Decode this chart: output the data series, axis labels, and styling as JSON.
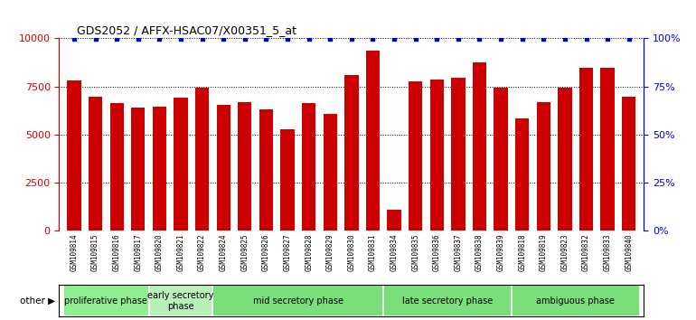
{
  "title": "GDS2052 / AFFX-HSAC07/X00351_5_at",
  "samples": [
    "GSM109814",
    "GSM109815",
    "GSM109816",
    "GSM109817",
    "GSM109820",
    "GSM109821",
    "GSM109822",
    "GSM109824",
    "GSM109825",
    "GSM109826",
    "GSM109827",
    "GSM109828",
    "GSM109829",
    "GSM109830",
    "GSM109831",
    "GSM109834",
    "GSM109835",
    "GSM109836",
    "GSM109837",
    "GSM109838",
    "GSM109839",
    "GSM109818",
    "GSM109819",
    "GSM109823",
    "GSM109832",
    "GSM109833",
    "GSM109840"
  ],
  "counts": [
    7800,
    6950,
    6650,
    6400,
    6450,
    6900,
    7450,
    6550,
    6700,
    6300,
    5250,
    6650,
    6050,
    8100,
    9350,
    1100,
    7750,
    7850,
    7950,
    8750,
    7450,
    5850,
    6700,
    7450,
    8450,
    8450,
    6950
  ],
  "phases": [
    {
      "name": "proliferative phase",
      "start": 0,
      "end": 4,
      "color": "#90EE90"
    },
    {
      "name": "early secretory\nphase",
      "start": 4,
      "end": 7,
      "color": "#b8f0b8"
    },
    {
      "name": "mid secretory phase",
      "start": 7,
      "end": 15,
      "color": "#7adf7a"
    },
    {
      "name": "late secretory phase",
      "start": 15,
      "end": 21,
      "color": "#7adf7a"
    },
    {
      "name": "ambiguous phase",
      "start": 21,
      "end": 27,
      "color": "#7adf7a"
    }
  ],
  "bar_color": "#cc0000",
  "percentile_color": "#0000cc",
  "left_axis_color": "#cc0000",
  "right_axis_color": "#0000cc",
  "ylim": [
    0,
    10000
  ],
  "yticks_left": [
    0,
    2500,
    5000,
    7500,
    10000
  ],
  "yticks_right": [
    0,
    25,
    50,
    75,
    100
  ],
  "plot_bg_color": "#ffffff",
  "tick_label_bg": "#d0d0d0"
}
